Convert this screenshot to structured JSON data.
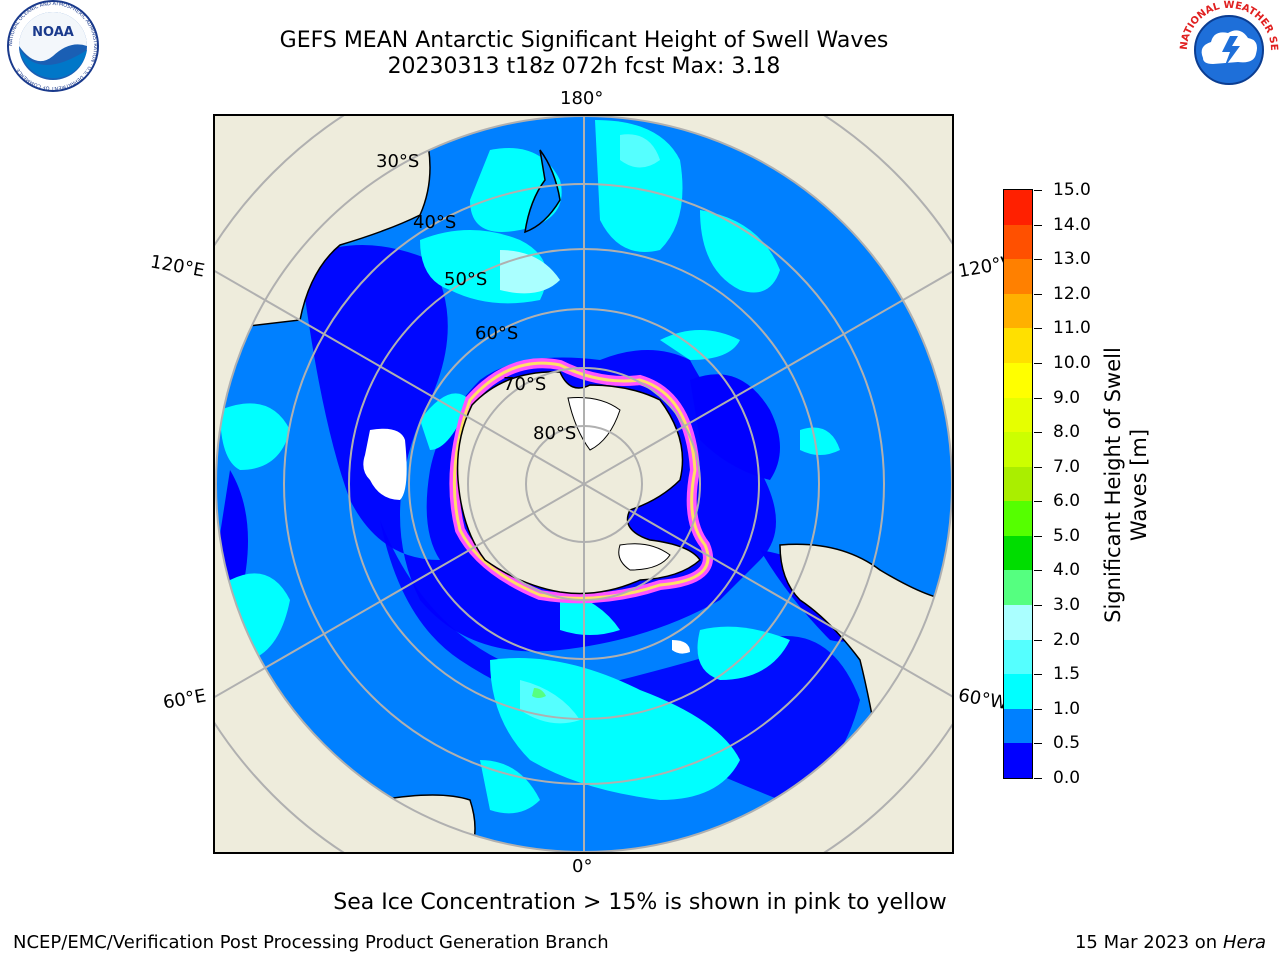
{
  "header": {
    "title_line1": "GEFS MEAN Antarctic Significant Height of Swell Waves",
    "title_line2": "20230313 t18z 072h fcst   Max: 3.18"
  },
  "map": {
    "longitude_labels": {
      "top": "180°",
      "bottom": "0°",
      "upper_left": "120°E",
      "lower_left": "60°E",
      "upper_right": "120°W",
      "lower_right": "60°W"
    },
    "latitude_labels": [
      "30°S",
      "40°S",
      "50°S",
      "60°S",
      "70°S",
      "80°S"
    ],
    "colors": {
      "land": "#eeecdc",
      "ocean_base": "#0080ff",
      "sea_ice_pink": "#ff55ff",
      "sea_ice_yellow": "#ffe066",
      "grid": "#b0b0b0"
    }
  },
  "colorbar": {
    "title": "Significant Height of Swell Waves [m]",
    "tick_labels": [
      "0.0",
      "0.5",
      "1.0",
      "1.5",
      "2.0",
      "3.0",
      "4.0",
      "5.0",
      "6.0",
      "7.0",
      "8.0",
      "9.0",
      "10.0",
      "11.0",
      "12.0",
      "13.0",
      "14.0",
      "15.0"
    ],
    "colors": [
      "#0000ff",
      "#0080ff",
      "#00ffff",
      "#55ffff",
      "#aaffff",
      "#55ff80",
      "#00dd00",
      "#55ff00",
      "#aaee00",
      "#ccff00",
      "#e6ff00",
      "#ffff00",
      "#ffe000",
      "#ffb000",
      "#ff8000",
      "#ff5000",
      "#ff2000"
    ]
  },
  "subtitle": "Sea Ice Concentration > 15% is shown in pink to yellow",
  "footer": {
    "left": "NCEP/EMC/Verification Post Processing Product Generation Branch",
    "right_date": "15 Mar 2023 on",
    "right_machine": "Hera"
  },
  "logos": {
    "noaa_text": "NOAA",
    "noaa_ring_text": "NATIONAL OCEANIC AND ATMOSPHERIC ADMINISTRATION · U.S. DEPARTMENT OF COMMERCE",
    "nws_ring_text": "NATIONAL WEATHER SERVICE"
  }
}
